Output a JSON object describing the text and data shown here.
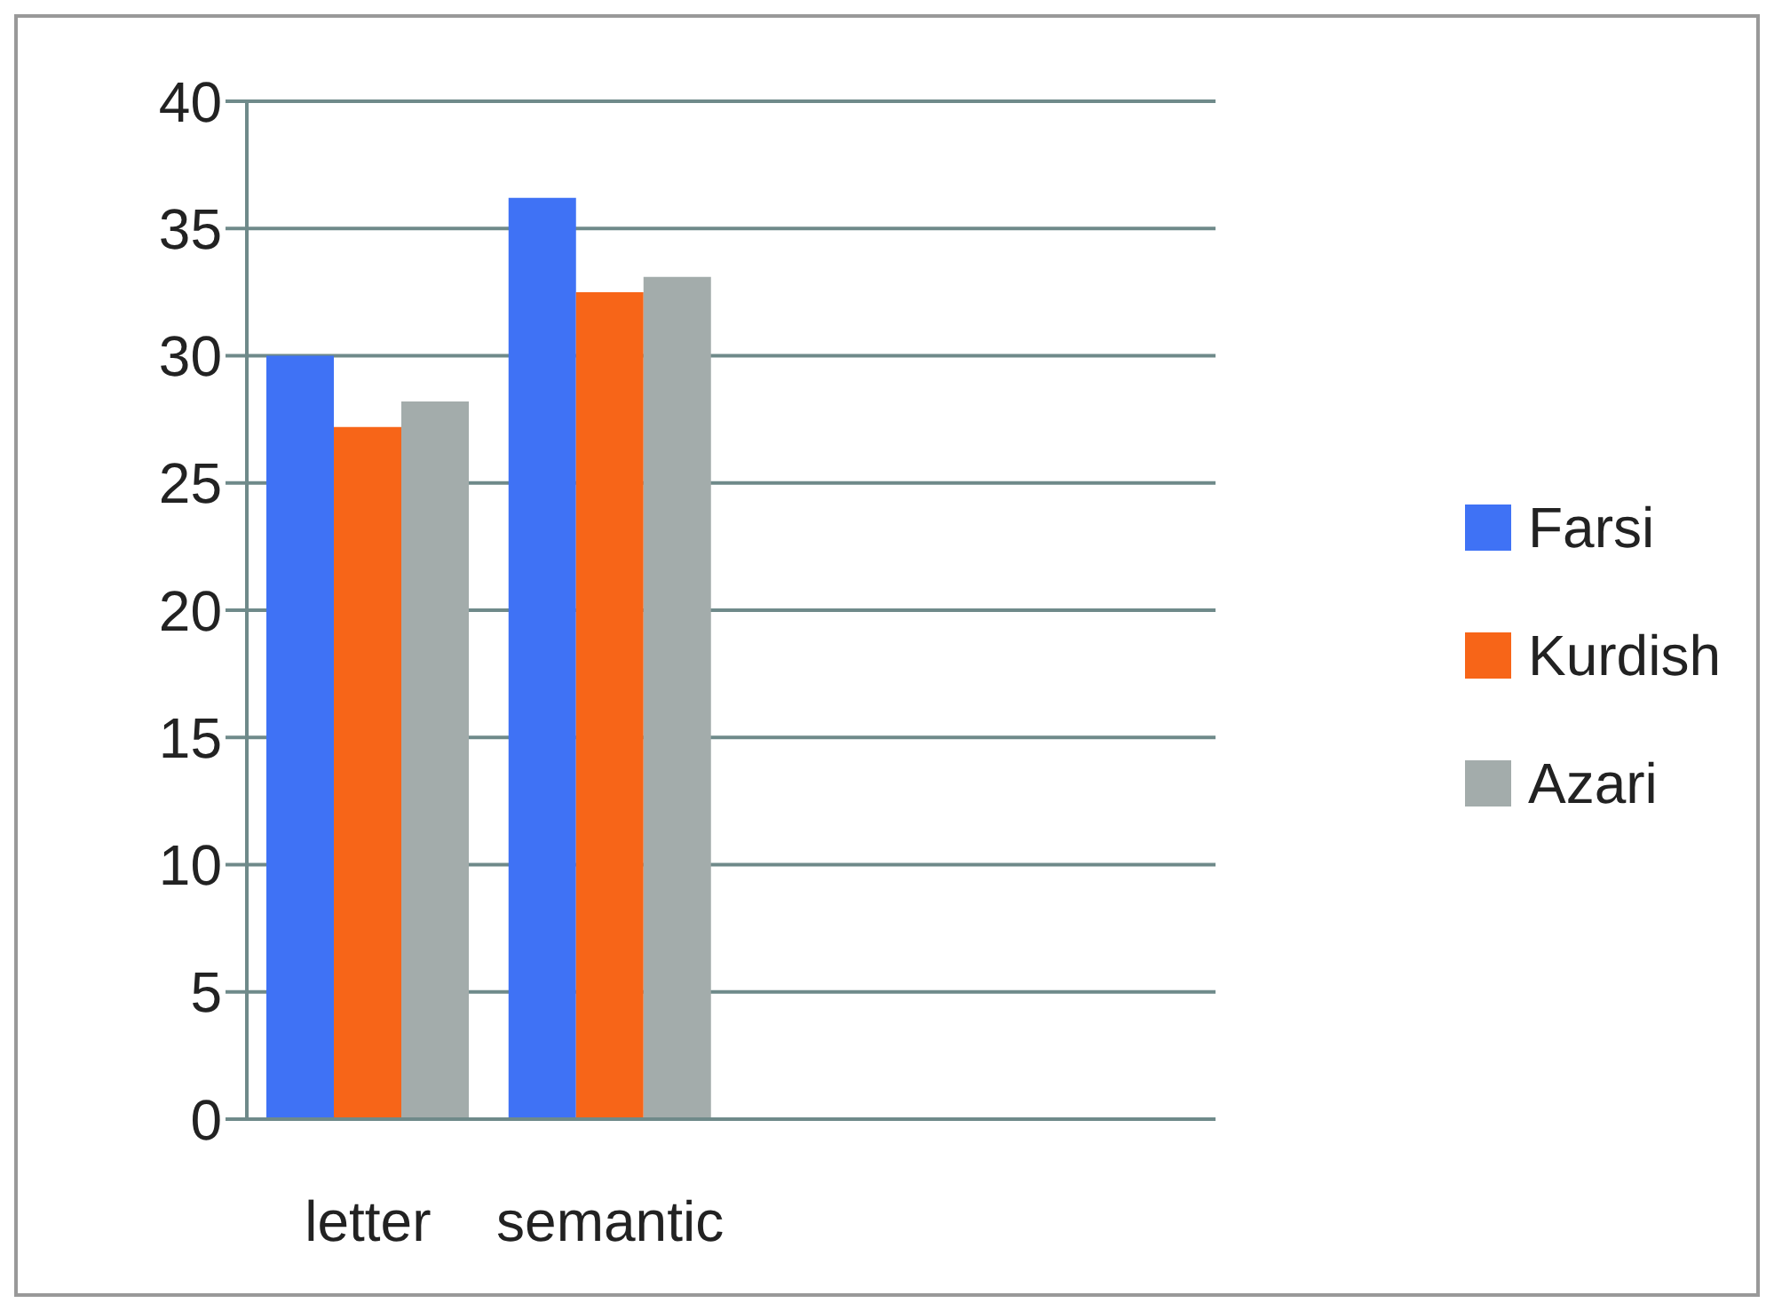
{
  "chart_data": {
    "type": "bar",
    "categories": [
      "letter",
      "semantic",
      null,
      null
    ],
    "series": [
      {
        "name": "Farsi",
        "color": "#3f72f5",
        "values": [
          30,
          36.2,
          null,
          null
        ]
      },
      {
        "name": "Kurdish",
        "color": "#f76518",
        "values": [
          27.2,
          32.5,
          null,
          null
        ]
      },
      {
        "name": "Azari",
        "color": "#a3acab",
        "values": [
          28.2,
          33.1,
          null,
          null
        ]
      }
    ],
    "ylim": [
      0,
      40
    ],
    "yticks": [
      0,
      5,
      10,
      15,
      20,
      25,
      30,
      35,
      40
    ],
    "grid": "y",
    "legend": "right"
  }
}
